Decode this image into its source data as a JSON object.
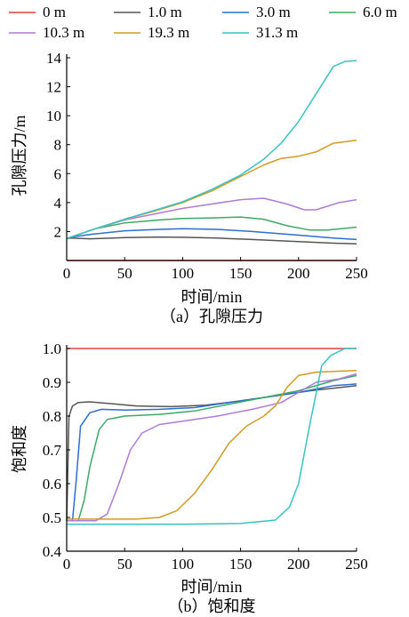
{
  "legend": {
    "items": [
      {
        "label": "0 m",
        "color": "#e8413c"
      },
      {
        "label": "1.0 m",
        "color": "#555555"
      },
      {
        "label": "3.0 m",
        "color": "#2a6fd1"
      },
      {
        "label": "6.0 m",
        "color": "#3aaa64"
      },
      {
        "label": "10.3 m",
        "color": "#b07ad8"
      },
      {
        "label": "19.3 m",
        "color": "#d39a22"
      },
      {
        "label": "31.3 m",
        "color": "#35c4c4"
      }
    ]
  },
  "chart_data": [
    {
      "type": "line",
      "caption": "（a）孔隙压力",
      "xlabel": "时间/min",
      "ylabel": "孔隙压力/m",
      "xlim": [
        0,
        250
      ],
      "ylim": [
        0,
        14
      ],
      "xticks": [
        0,
        50,
        100,
        150,
        200,
        250
      ],
      "yticks": [
        2,
        4,
        6,
        8,
        10,
        12,
        14
      ],
      "grid": false,
      "series": [
        {
          "name": "0 m",
          "color": "#e8413c",
          "x": [
            0,
            50,
            100,
            150,
            200,
            250
          ],
          "y": [
            0,
            0,
            0,
            0,
            0,
            0
          ]
        },
        {
          "name": "1.0 m",
          "color": "#555555",
          "x": [
            0,
            3,
            20,
            50,
            80,
            100,
            130,
            160,
            200,
            230,
            250
          ],
          "y": [
            1.5,
            1.55,
            1.5,
            1.58,
            1.62,
            1.6,
            1.55,
            1.45,
            1.3,
            1.2,
            1.15
          ]
        },
        {
          "name": "3.0 m",
          "color": "#2a6fd1",
          "x": [
            0,
            3,
            20,
            50,
            80,
            100,
            130,
            160,
            200,
            230,
            250
          ],
          "y": [
            1.5,
            1.6,
            1.8,
            2.05,
            2.15,
            2.2,
            2.15,
            2.0,
            1.75,
            1.55,
            1.45
          ]
        },
        {
          "name": "6.0 m",
          "color": "#3aaa64",
          "x": [
            0,
            3,
            25,
            50,
            80,
            100,
            130,
            150,
            170,
            190,
            210,
            225,
            250
          ],
          "y": [
            1.5,
            1.6,
            2.2,
            2.6,
            2.8,
            2.9,
            2.95,
            3.0,
            2.85,
            2.4,
            2.1,
            2.1,
            2.3
          ]
        },
        {
          "name": "10.3 m",
          "color": "#b07ad8",
          "x": [
            0,
            3,
            25,
            50,
            75,
            100,
            125,
            150,
            170,
            190,
            205,
            215,
            235,
            250
          ],
          "y": [
            1.5,
            1.6,
            2.2,
            2.8,
            3.2,
            3.6,
            3.9,
            4.2,
            4.3,
            3.9,
            3.5,
            3.5,
            4.0,
            4.2
          ]
        },
        {
          "name": "19.3 m",
          "color": "#d39a22",
          "x": [
            0,
            3,
            25,
            50,
            75,
            100,
            125,
            150,
            170,
            185,
            200,
            215,
            230,
            250
          ],
          "y": [
            1.5,
            1.6,
            2.2,
            2.85,
            3.4,
            4.0,
            4.8,
            5.8,
            6.6,
            7.05,
            7.2,
            7.5,
            8.1,
            8.3
          ]
        },
        {
          "name": "31.3 m",
          "color": "#35c4c4",
          "x": [
            0,
            3,
            25,
            50,
            75,
            100,
            125,
            150,
            170,
            185,
            200,
            215,
            230,
            240,
            250
          ],
          "y": [
            1.5,
            1.6,
            2.2,
            2.85,
            3.45,
            4.05,
            4.9,
            5.9,
            7.0,
            8.1,
            9.6,
            11.5,
            13.4,
            13.75,
            13.8
          ]
        }
      ]
    },
    {
      "type": "line",
      "caption": "（b）饱和度",
      "xlabel": "时间/min",
      "ylabel": "饱和度",
      "xlim": [
        0,
        250
      ],
      "ylim": [
        0.4,
        1.0
      ],
      "xticks": [
        0,
        50,
        100,
        150,
        200,
        250
      ],
      "yticks": [
        0.4,
        0.5,
        0.6,
        0.7,
        0.8,
        0.9,
        1.0
      ],
      "grid": false,
      "series": [
        {
          "name": "0 m",
          "color": "#e8413c",
          "x": [
            0,
            50,
            100,
            150,
            200,
            250
          ],
          "y": [
            1.0,
            1.0,
            1.0,
            1.0,
            1.0,
            1.0
          ]
        },
        {
          "name": "1.0 m",
          "color": "#555555",
          "x": [
            0,
            2,
            5,
            10,
            20,
            40,
            60,
            90,
            120,
            150,
            180,
            210,
            250
          ],
          "y": [
            0.49,
            0.8,
            0.83,
            0.84,
            0.842,
            0.836,
            0.83,
            0.828,
            0.832,
            0.845,
            0.86,
            0.875,
            0.89
          ]
        },
        {
          "name": "3.0 m",
          "color": "#2a6fd1",
          "x": [
            0,
            5,
            8,
            12,
            20,
            30,
            50,
            80,
            110,
            140,
            170,
            200,
            230,
            250
          ],
          "y": [
            0.49,
            0.49,
            0.6,
            0.77,
            0.81,
            0.82,
            0.818,
            0.82,
            0.825,
            0.84,
            0.855,
            0.87,
            0.89,
            0.895
          ]
        },
        {
          "name": "6.0 m",
          "color": "#3aaa64",
          "x": [
            0,
            10,
            15,
            20,
            28,
            35,
            50,
            80,
            110,
            140,
            170,
            200,
            230,
            250
          ],
          "y": [
            0.49,
            0.49,
            0.55,
            0.65,
            0.76,
            0.79,
            0.8,
            0.805,
            0.815,
            0.835,
            0.855,
            0.875,
            0.905,
            0.92
          ]
        },
        {
          "name": "10.3 m",
          "color": "#b07ad8",
          "x": [
            0,
            25,
            35,
            45,
            55,
            65,
            80,
            100,
            130,
            160,
            185,
            200,
            215,
            235,
            250
          ],
          "y": [
            0.49,
            0.49,
            0.51,
            0.6,
            0.7,
            0.75,
            0.775,
            0.785,
            0.8,
            0.82,
            0.84,
            0.87,
            0.9,
            0.91,
            0.925
          ]
        },
        {
          "name": "19.3 m",
          "color": "#d39a22",
          "x": [
            0,
            60,
            80,
            95,
            110,
            125,
            140,
            155,
            170,
            180,
            190,
            200,
            215,
            250
          ],
          "y": [
            0.495,
            0.495,
            0.5,
            0.52,
            0.57,
            0.64,
            0.72,
            0.77,
            0.8,
            0.83,
            0.885,
            0.92,
            0.93,
            0.935
          ]
        },
        {
          "name": "31.3 m",
          "color": "#35c4c4",
          "x": [
            0,
            50,
            100,
            150,
            180,
            192,
            200,
            210,
            220,
            228,
            240,
            250
          ],
          "y": [
            0.48,
            0.48,
            0.48,
            0.482,
            0.492,
            0.53,
            0.6,
            0.78,
            0.95,
            0.98,
            1.0,
            1.0
          ]
        }
      ]
    }
  ]
}
